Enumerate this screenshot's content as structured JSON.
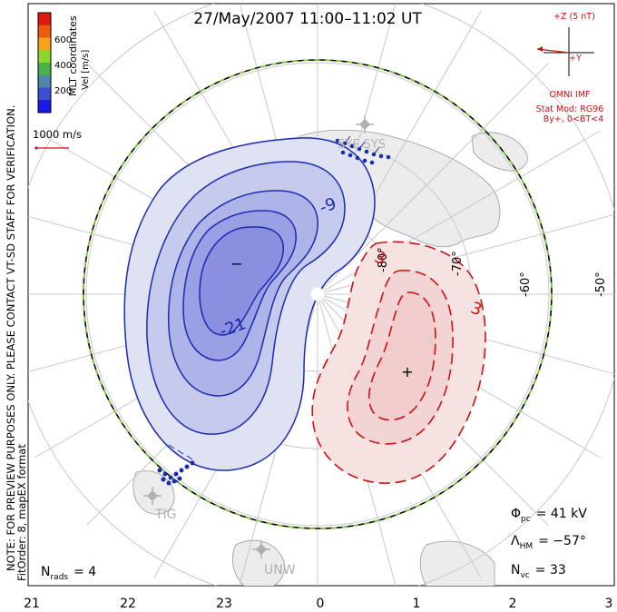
{
  "title": "27/May/2007 11:00–11:02 UT",
  "side_note": {
    "line1": "NOTE: FOR PREVIEW PURPOSES ONLY. PLEASE CONTACT VT-SD STAFF FOR VERIFICATION.",
    "line2": "FitOrder: 8, mapEX format"
  },
  "mlt_label": "MLT coordinates",
  "color_bar": {
    "title": "Vel [m/s]",
    "ticks": [
      "600",
      "400",
      "200"
    ],
    "colors": [
      "#dd1a0e",
      "#f05a0e",
      "#f5a51a",
      "#8ed62b",
      "#4ab04a",
      "#4d88a8",
      "#3a4fd0",
      "#1a1ae6"
    ]
  },
  "velocity_scale": "1000 m/s",
  "imf": {
    "z_label": "+Z (5 nT)",
    "y_label": "+Y",
    "source": "OMNI IMF",
    "model": "Stat Mod: RG96",
    "condition": "By+, 0<BT<4",
    "color": "#cc1111"
  },
  "latitude_labels": [
    "-60°",
    "-50°",
    "-60°",
    "-70°",
    "-80°"
  ],
  "contours": {
    "negative_labels": [
      "-9",
      "-21"
    ],
    "positive_labels": [
      "3",
      "3",
      "3"
    ],
    "min_marker": "−",
    "max_marker": "+",
    "negative_color": "#1a2bb0",
    "positive_color": "#cc1111"
  },
  "stations": [
    "SYE SYS",
    "TIG",
    "UNW"
  ],
  "stats": {
    "phi_pc_sym": "Φ",
    "phi_pc_sub": "pc",
    "phi_pc_value": "= 41 kV",
    "lambda_sym": "Λ",
    "lambda_sub": "HM",
    "lambda_value": "= −57°",
    "nvc_sym": "N",
    "nvc_sub": "vc",
    "nvc_value": "= 33",
    "nrads_sym": "N",
    "nrads_sub": "rads",
    "nrads_value": "= 4"
  },
  "mlt_hours": [
    "21",
    "22",
    "23",
    "0",
    "1",
    "2",
    "3"
  ]
}
